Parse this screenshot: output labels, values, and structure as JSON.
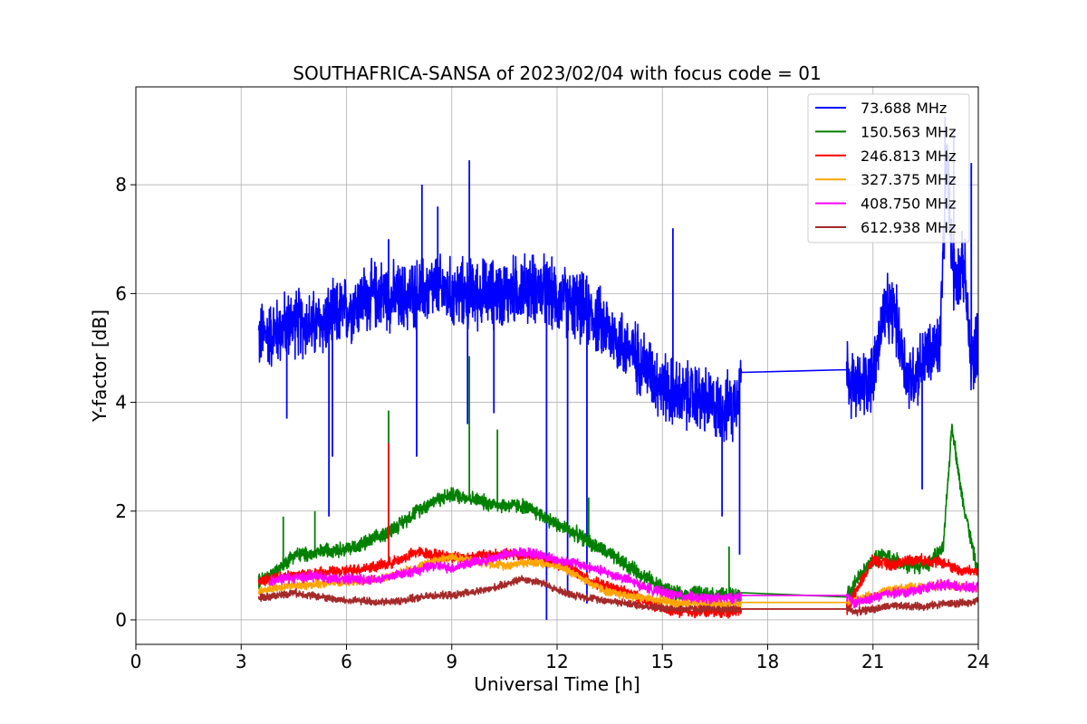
{
  "chart_data": {
    "type": "line",
    "title": "SOUTHAFRICA-SANSA of 2023/02/04 with focus code = 01",
    "xlabel": "Universal Time [h]",
    "ylabel": "Y-factor [dB]",
    "xlim": [
      0,
      24
    ],
    "ylim": [
      -0.45,
      9.8
    ],
    "xticks": [
      0,
      3,
      6,
      9,
      12,
      15,
      18,
      21,
      24
    ],
    "yticks": [
      0,
      2,
      4,
      6,
      8
    ],
    "grid": true,
    "legend_position": "top-right",
    "series": [
      {
        "name": " 73.688 MHz",
        "color": "#0000ff",
        "points": [
          [
            3.5,
            5.2
          ],
          [
            4,
            5.3
          ],
          [
            4.5,
            5.5
          ],
          [
            5,
            5.4
          ],
          [
            5.5,
            5.5
          ],
          [
            6,
            5.7
          ],
          [
            6.5,
            5.9
          ],
          [
            7,
            6.0
          ],
          [
            7.5,
            5.9
          ],
          [
            8,
            6.0
          ],
          [
            8.5,
            6.1
          ],
          [
            9,
            6.0
          ],
          [
            9.5,
            6.0
          ],
          [
            10,
            6.0
          ],
          [
            10.5,
            6.0
          ],
          [
            11,
            6.1
          ],
          [
            11.5,
            6.1
          ],
          [
            12,
            5.9
          ],
          [
            12.5,
            5.8
          ],
          [
            13,
            5.6
          ],
          [
            13.5,
            5.3
          ],
          [
            14,
            5.0
          ],
          [
            14.5,
            4.7
          ],
          [
            15,
            4.3
          ],
          [
            15.5,
            4.1
          ],
          [
            16,
            4.1
          ],
          [
            16.5,
            3.9
          ],
          [
            17,
            3.9
          ],
          [
            17.25,
            4.55
          ],
          [
            20.25,
            4.6
          ],
          [
            20.5,
            4.2
          ],
          [
            21,
            4.5
          ],
          [
            21.3,
            5.6
          ],
          [
            21.6,
            5.7
          ],
          [
            22,
            4.4
          ],
          [
            22.5,
            4.8
          ],
          [
            22.9,
            5.0
          ],
          [
            23.1,
            8.5
          ],
          [
            23.3,
            6.3
          ],
          [
            23.6,
            6.5
          ],
          [
            23.8,
            4.6
          ],
          [
            24,
            5.3
          ]
        ],
        "spikes": [
          [
            4.3,
            3.7
          ],
          [
            5.5,
            1.9
          ],
          [
            5.6,
            3.0
          ],
          [
            7.2,
            7.0
          ],
          [
            8,
            3.0
          ],
          [
            8.15,
            8.0
          ],
          [
            8.6,
            7.6
          ],
          [
            9.5,
            8.45
          ],
          [
            9.45,
            3.6
          ],
          [
            10.2,
            3.8
          ],
          [
            11.7,
            0.0
          ],
          [
            12.3,
            0.5
          ],
          [
            12.85,
            0.3
          ],
          [
            15.3,
            7.2
          ],
          [
            16.7,
            1.9
          ],
          [
            17.2,
            1.2
          ],
          [
            22.4,
            2.4
          ],
          [
            23.05,
            9.25
          ],
          [
            23.3,
            8.9
          ],
          [
            23.8,
            8.4
          ]
        ]
      },
      {
        "name": "150.563 MHz",
        "color": "#008000",
        "points": [
          [
            3.5,
            0.7
          ],
          [
            4,
            0.9
          ],
          [
            4.5,
            1.2
          ],
          [
            5,
            1.2
          ],
          [
            5.5,
            1.3
          ],
          [
            6,
            1.3
          ],
          [
            6.5,
            1.4
          ],
          [
            7,
            1.55
          ],
          [
            7.5,
            1.75
          ],
          [
            8,
            2.0
          ],
          [
            8.5,
            2.2
          ],
          [
            9,
            2.3
          ],
          [
            9.5,
            2.25
          ],
          [
            10,
            2.15
          ],
          [
            10.5,
            2.1
          ],
          [
            11,
            2.1
          ],
          [
            11.5,
            1.95
          ],
          [
            12,
            1.75
          ],
          [
            12.5,
            1.6
          ],
          [
            13,
            1.4
          ],
          [
            13.5,
            1.2
          ],
          [
            14,
            1.0
          ],
          [
            14.5,
            0.8
          ],
          [
            15,
            0.6
          ],
          [
            15.5,
            0.45
          ],
          [
            16,
            0.5
          ],
          [
            16.5,
            0.45
          ],
          [
            17,
            0.45
          ],
          [
            17.25,
            0.5
          ],
          [
            20.25,
            0.42
          ],
          [
            20.5,
            0.7
          ],
          [
            21,
            1.1
          ],
          [
            21.3,
            1.2
          ],
          [
            22,
            1.0
          ],
          [
            22.5,
            1.0
          ],
          [
            23,
            1.3
          ],
          [
            23.25,
            3.6
          ],
          [
            23.5,
            2.4
          ],
          [
            24,
            0.8
          ]
        ],
        "spikes": [
          [
            4.2,
            1.9
          ],
          [
            5.1,
            2.0
          ],
          [
            7.2,
            3.85
          ],
          [
            9.5,
            4.85
          ],
          [
            10.3,
            3.5
          ],
          [
            12.9,
            2.25
          ],
          [
            16.9,
            1.35
          ]
        ]
      },
      {
        "name": "246.813 MHz",
        "color": "#ff0000",
        "points": [
          [
            3.5,
            0.7
          ],
          [
            4,
            0.8
          ],
          [
            5,
            0.85
          ],
          [
            6,
            0.9
          ],
          [
            7,
            1.0
          ],
          [
            7.5,
            1.1
          ],
          [
            8,
            1.25
          ],
          [
            8.5,
            1.2
          ],
          [
            9,
            1.15
          ],
          [
            9.5,
            1.15
          ],
          [
            10,
            1.2
          ],
          [
            10.5,
            1.2
          ],
          [
            11,
            1.2
          ],
          [
            11.5,
            1.15
          ],
          [
            12,
            1.05
          ],
          [
            12.5,
            0.9
          ],
          [
            13,
            0.7
          ],
          [
            13.5,
            0.6
          ],
          [
            14,
            0.5
          ],
          [
            14.5,
            0.35
          ],
          [
            15,
            0.2
          ],
          [
            15.5,
            0.15
          ],
          [
            16,
            0.15
          ],
          [
            16.5,
            0.15
          ],
          [
            17,
            0.15
          ],
          [
            17.25,
            0.2
          ],
          [
            20.25,
            0.2
          ],
          [
            20.5,
            0.5
          ],
          [
            21,
            1.1
          ],
          [
            21.5,
            1.0
          ],
          [
            22,
            1.1
          ],
          [
            22.5,
            1.1
          ],
          [
            23,
            1.05
          ],
          [
            23.5,
            0.9
          ],
          [
            24,
            0.9
          ]
        ],
        "spikes": [
          [
            7.2,
            3.25
          ]
        ]
      },
      {
        "name": "327.375 MHz",
        "color": "#ffa500",
        "points": [
          [
            3.5,
            0.5
          ],
          [
            4,
            0.6
          ],
          [
            5,
            0.65
          ],
          [
            6,
            0.7
          ],
          [
            7,
            0.75
          ],
          [
            7.5,
            0.85
          ],
          [
            8,
            0.95
          ],
          [
            8.5,
            1.1
          ],
          [
            9,
            1.15
          ],
          [
            9.5,
            1.1
          ],
          [
            10,
            1.05
          ],
          [
            10.5,
            1.0
          ],
          [
            11,
            1.05
          ],
          [
            11.5,
            1.05
          ],
          [
            12,
            1.0
          ],
          [
            12.5,
            0.85
          ],
          [
            13,
            0.65
          ],
          [
            13.5,
            0.5
          ],
          [
            14,
            0.45
          ],
          [
            14.5,
            0.4
          ],
          [
            15,
            0.35
          ],
          [
            15.5,
            0.3
          ],
          [
            16,
            0.3
          ],
          [
            16.5,
            0.3
          ],
          [
            17,
            0.3
          ],
          [
            17.25,
            0.32
          ],
          [
            20.25,
            0.32
          ],
          [
            20.5,
            0.35
          ],
          [
            21,
            0.45
          ],
          [
            21.5,
            0.55
          ],
          [
            22,
            0.6
          ],
          [
            22.5,
            0.6
          ],
          [
            23,
            0.65
          ],
          [
            23.5,
            0.6
          ],
          [
            24,
            0.6
          ]
        ],
        "spikes": []
      },
      {
        "name": "408.750 MHz",
        "color": "#ff00ff",
        "points": [
          [
            3.8,
            0.7
          ],
          [
            4,
            0.75
          ],
          [
            5,
            0.8
          ],
          [
            6,
            0.75
          ],
          [
            7,
            0.75
          ],
          [
            7.5,
            0.85
          ],
          [
            8,
            0.9
          ],
          [
            8.5,
            1.0
          ],
          [
            9,
            0.95
          ],
          [
            9.5,
            1.05
          ],
          [
            10,
            1.1
          ],
          [
            10.5,
            1.2
          ],
          [
            11,
            1.25
          ],
          [
            11.5,
            1.2
          ],
          [
            12,
            1.1
          ],
          [
            12.5,
            1.05
          ],
          [
            13,
            0.95
          ],
          [
            13.5,
            0.85
          ],
          [
            14,
            0.75
          ],
          [
            14.5,
            0.6
          ],
          [
            15,
            0.5
          ],
          [
            15.5,
            0.45
          ],
          [
            16,
            0.4
          ],
          [
            16.5,
            0.4
          ],
          [
            17,
            0.4
          ],
          [
            17.25,
            0.45
          ],
          [
            20.25,
            0.45
          ],
          [
            20.5,
            0.3
          ],
          [
            21,
            0.4
          ],
          [
            21.5,
            0.5
          ],
          [
            22,
            0.5
          ],
          [
            22.5,
            0.6
          ],
          [
            23,
            0.65
          ],
          [
            23.5,
            0.6
          ],
          [
            24,
            0.6
          ]
        ],
        "spikes": []
      },
      {
        "name": "612.938 MHz",
        "color": "#a52a2a",
        "points": [
          [
            3.5,
            0.4
          ],
          [
            4,
            0.45
          ],
          [
            4.5,
            0.5
          ],
          [
            5,
            0.45
          ],
          [
            5.5,
            0.4
          ],
          [
            6,
            0.35
          ],
          [
            6.5,
            0.35
          ],
          [
            7,
            0.32
          ],
          [
            7.5,
            0.35
          ],
          [
            8,
            0.4
          ],
          [
            8.5,
            0.45
          ],
          [
            9,
            0.45
          ],
          [
            9.5,
            0.5
          ],
          [
            10,
            0.55
          ],
          [
            10.5,
            0.65
          ],
          [
            11,
            0.75
          ],
          [
            11.5,
            0.7
          ],
          [
            12,
            0.55
          ],
          [
            12.5,
            0.45
          ],
          [
            13,
            0.4
          ],
          [
            13.5,
            0.35
          ],
          [
            14,
            0.3
          ],
          [
            14.5,
            0.25
          ],
          [
            15,
            0.22
          ],
          [
            15.5,
            0.2
          ],
          [
            16,
            0.2
          ],
          [
            16.5,
            0.2
          ],
          [
            17,
            0.2
          ],
          [
            17.25,
            0.2
          ],
          [
            20.25,
            0.2
          ],
          [
            20.5,
            0.15
          ],
          [
            21,
            0.2
          ],
          [
            21.5,
            0.25
          ],
          [
            22,
            0.25
          ],
          [
            22.5,
            0.25
          ],
          [
            23,
            0.3
          ],
          [
            23.5,
            0.3
          ],
          [
            24,
            0.35
          ]
        ],
        "spikes": []
      }
    ]
  }
}
